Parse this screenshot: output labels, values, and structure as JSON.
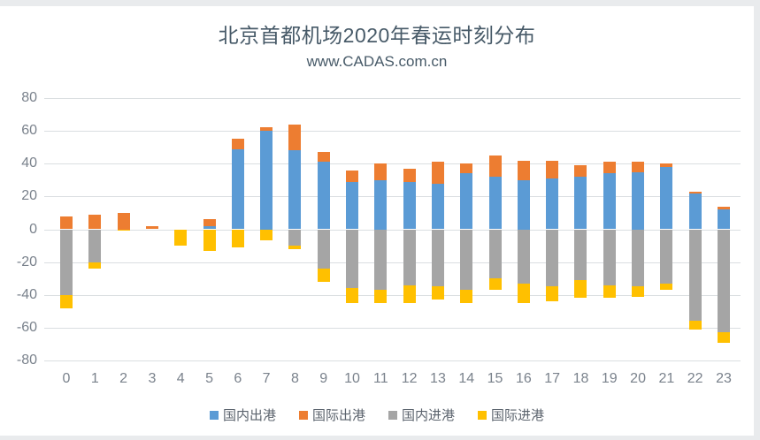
{
  "header": {
    "title": "北京首都机场2020年春运时刻分布",
    "subtitle": "www.CADAS.com.cn"
  },
  "chart_data": {
    "type": "bar",
    "stacked": true,
    "title": "北京首都机场2020年春运时刻分布",
    "subtitle": "www.CADAS.com.cn",
    "xlabel": "",
    "ylabel": "",
    "ylim": [
      -80,
      80
    ],
    "ytick_interval": 20,
    "ytick_labels": [
      "80",
      "60",
      "40",
      "20",
      "0",
      "-20",
      "-40",
      "-60",
      "-80"
    ],
    "grid": true,
    "legend_position": "bottom",
    "categories": [
      "0",
      "1",
      "2",
      "3",
      "4",
      "5",
      "6",
      "7",
      "8",
      "9",
      "10",
      "11",
      "12",
      "13",
      "14",
      "15",
      "16",
      "17",
      "18",
      "19",
      "20",
      "21",
      "22",
      "23"
    ],
    "series": [
      {
        "name": "国内出港",
        "color": "#5B9BD5",
        "values": [
          0,
          0,
          0,
          0,
          0,
          2,
          49,
          60,
          48,
          41,
          29,
          30,
          29,
          28,
          34,
          32,
          30,
          31,
          32,
          34,
          35,
          38,
          22,
          12
        ]
      },
      {
        "name": "国际出港",
        "color": "#ED7D31",
        "values": [
          8,
          9,
          10,
          2,
          0,
          4,
          6,
          2,
          16,
          6,
          7,
          10,
          8,
          13,
          6,
          13,
          12,
          11,
          7,
          7,
          6,
          2,
          1,
          2
        ]
      },
      {
        "name": "国内进港",
        "color": "#A5A5A5",
        "values": [
          -40,
          -20,
          0,
          0,
          0,
          0,
          0,
          0,
          -10,
          -24,
          -36,
          -37,
          -34,
          -35,
          -37,
          -30,
          -33,
          -35,
          -31,
          -34,
          -35,
          -33,
          -56,
          -63
        ]
      },
      {
        "name": "国际进港",
        "color": "#FFC000",
        "values": [
          -8,
          -4,
          -1,
          0,
          -10,
          -13,
          -11,
          -7,
          -2,
          -8,
          -9,
          -8,
          -11,
          -8,
          -8,
          -7,
          -12,
          -9,
          -11,
          -8,
          -6,
          -4,
          -5,
          -6
        ]
      }
    ]
  },
  "colors": {
    "background": "#e9ebed",
    "panel": "#ffffff",
    "gridline": "#dadee1",
    "title_text": "#475a68",
    "axis_text": "#7a828c",
    "legend_text": "#5b636d"
  }
}
